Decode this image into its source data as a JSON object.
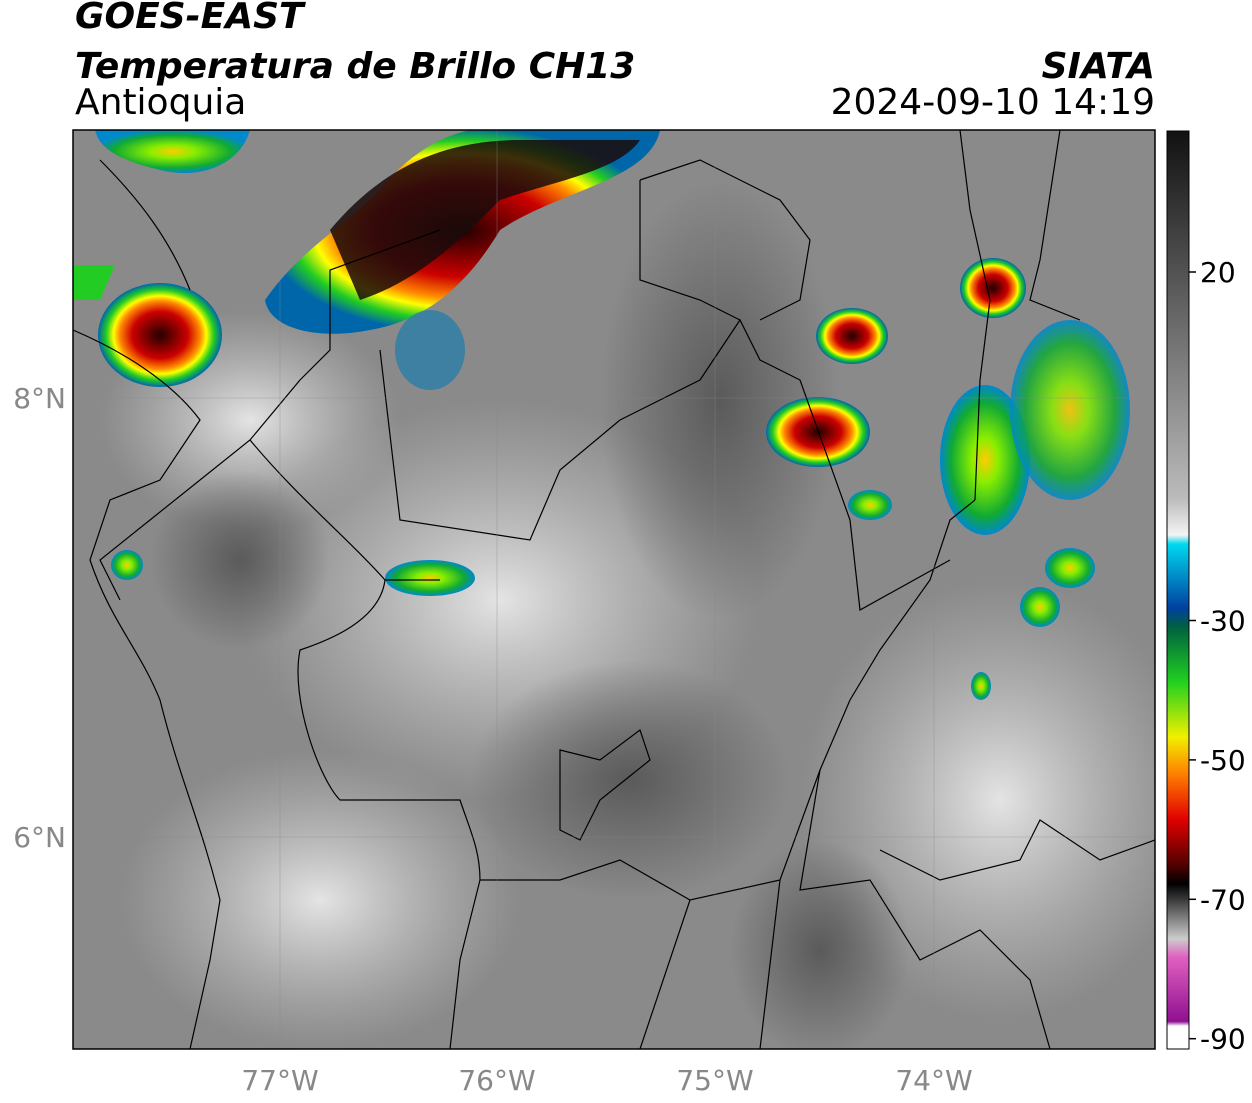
{
  "header": {
    "line1": "GOES-EAST",
    "title": "Temperatura de Brillo CH13",
    "region": "Antioquia",
    "source": "SIATA",
    "datetime": "2024-09-10 14:19"
  },
  "map": {
    "lat_labels": [
      "8°N",
      "6°N"
    ],
    "lon_labels": [
      "77°W",
      "76°W",
      "75°W",
      "74°W"
    ]
  },
  "colorbar": {
    "ticks": [
      20,
      -30,
      -50,
      -70,
      -90
    ]
  }
}
